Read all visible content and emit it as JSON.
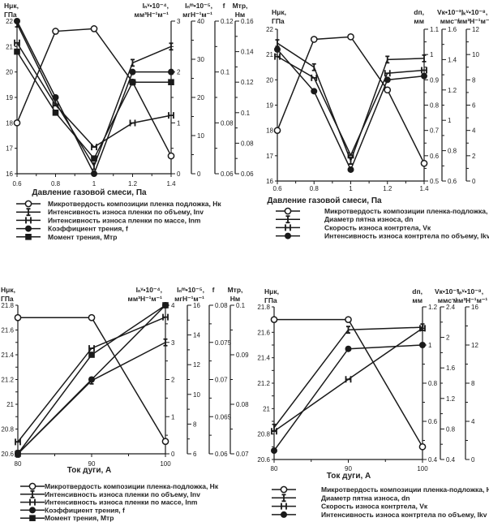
{
  "colors": {
    "line": "#1a1a1a",
    "axis": "#222222",
    "background": "#ffffff"
  },
  "chart_data": [
    {
      "type": "line",
      "xlabel": "Давление газовой смеси, Па",
      "x": [
        0.6,
        0.8,
        1,
        1.2,
        1.4
      ],
      "x_ticks": [
        "0.6",
        "0.8",
        "1",
        "1.2",
        "1.4"
      ],
      "axes": [
        {
          "id": "Hk",
          "side": "left",
          "title": [
            "Hμк,",
            "ГПа"
          ],
          "range": [
            16,
            22
          ],
          "ticks": [
            16,
            17,
            18,
            19,
            20,
            21,
            22
          ],
          "minor": 0
        },
        {
          "id": "Inv",
          "side": "right",
          "title": [
            "Iₙᵛ•10⁻⁴,",
            "мм³Н⁻¹м⁻¹"
          ],
          "range": [
            0,
            3
          ],
          "ticks": [
            0,
            1,
            2,
            3
          ],
          "minor": 1
        },
        {
          "id": "Inm",
          "side": "right",
          "title": [
            "Iₙᵐ•10⁻⁵,",
            "мгН⁻¹м⁻¹"
          ],
          "range": [
            0,
            40
          ],
          "ticks": [
            0,
            10,
            20,
            30,
            40
          ],
          "minor": 1
        },
        {
          "id": "f",
          "side": "right",
          "title": [
            "f",
            ""
          ],
          "range": [
            0.06,
            0.12
          ],
          "ticks": [
            0.06,
            0.08,
            0.1,
            0.12
          ],
          "minor": 1
        },
        {
          "id": "Mtr",
          "side": "right",
          "title": [
            "Mтр,",
            "Нм"
          ],
          "range": [
            0.06,
            0.16
          ],
          "ticks": [
            0.06,
            0.08,
            0.1,
            0.12,
            0.14,
            0.16
          ],
          "minor": 1
        }
      ],
      "series": [
        {
          "name": "Микротвердость композиции пленка подложка, Hк",
          "axis": "Hk",
          "marker": "open-circle",
          "values": [
            18,
            21.6,
            21.7,
            19.6,
            16.7
          ]
        },
        {
          "name": "Интенсивность износа пленки по объему, Inv",
          "axis": "Inv",
          "marker": "bar-i",
          "values": [
            2.95,
            1.4,
            0.15,
            2.18,
            2.5
          ]
        },
        {
          "name": "Интенсивность износа пленки по массе, Inm",
          "axis": "Inm",
          "marker": "bar-h",
          "values": [
            34.3,
            18,
            7,
            13.3,
            15.3
          ]
        },
        {
          "name": "Коэффициент трения, f",
          "axis": "f",
          "marker": "filled-circle",
          "values": [
            0.12,
            0.09,
            0.06,
            0.1,
            0.1
          ]
        },
        {
          "name": "Момент трения, Mтр",
          "axis": "Mtr",
          "marker": "filled-square",
          "values": [
            0.14,
            0.1,
            0.07,
            0.12,
            0.12
          ]
        }
      ]
    },
    {
      "type": "line",
      "xlabel": "Давление газовой смеси, Па",
      "x": [
        0.6,
        0.8,
        1,
        1.2,
        1.4
      ],
      "x_ticks": [
        "0.6",
        "0.8",
        "1",
        "1.2",
        "1.4"
      ],
      "axes": [
        {
          "id": "Hk",
          "side": "left",
          "title": [
            "Hμк,",
            "ГПа"
          ],
          "range": [
            16,
            22
          ],
          "ticks": [
            16,
            17,
            18,
            19,
            20,
            21,
            22
          ],
          "minor": 0
        },
        {
          "id": "dn",
          "side": "right",
          "title": [
            "dп,",
            "мм"
          ],
          "range": [
            0.5,
            1.1
          ],
          "ticks": [
            0.5,
            0.6,
            0.7,
            0.8,
            0.9,
            1,
            1.1
          ],
          "minor": 1
        },
        {
          "id": "Vk",
          "side": "right",
          "title": [
            "Vк•10⁻³,",
            "ммс⁻¹"
          ],
          "range": [
            0.6,
            1.6
          ],
          "ticks": [
            0.6,
            0.8,
            1,
            1.2,
            1.4,
            1.6
          ],
          "minor": 1
        },
        {
          "id": "Ikv",
          "side": "right",
          "title": [
            "Iₖᵛ•10⁻⁸,",
            "мм³Н⁻¹м⁻¹"
          ],
          "range": [
            0,
            12
          ],
          "ticks": [
            0,
            2,
            4,
            6,
            8,
            10,
            12
          ],
          "minor": 1
        }
      ],
      "series": [
        {
          "name": "Микротвердость композиции пленка-подложка, Hк",
          "axis": "Hk",
          "marker": "open-circle",
          "values": [
            18,
            21.6,
            21.7,
            19.6,
            16.7
          ]
        },
        {
          "name": "Диаметр пятна износа, dn",
          "axis": "dn",
          "marker": "bar-i",
          "values": [
            1.045,
            0.95,
            0.58,
            0.98,
            0.985
          ]
        },
        {
          "name": "Скорость износа контртела, Vк",
          "axis": "Vk",
          "marker": "bar-h",
          "values": [
            1.42,
            1.28,
            0.77,
            1.31,
            1.33
          ]
        },
        {
          "name": "Интенсивность износа контртела по объему, Ikv",
          "axis": "Ikv",
          "marker": "filled-circle",
          "values": [
            10.4,
            7.1,
            0.9,
            8,
            8.3
          ]
        }
      ]
    },
    {
      "type": "line",
      "xlabel": "Ток дуги, А",
      "x": [
        80,
        90,
        100
      ],
      "x_ticks": [
        "80",
        "90",
        "100"
      ],
      "axes": [
        {
          "id": "Hk",
          "side": "left",
          "title": [
            "Hμк,",
            "ГПа"
          ],
          "range": [
            20.6,
            21.8
          ],
          "ticks": [
            20.6,
            20.8,
            21,
            21.2,
            21.4,
            21.6,
            21.8
          ],
          "minor": 1
        },
        {
          "id": "Inv",
          "side": "right",
          "title": [
            "Iₙᵛ•10⁻⁴,",
            "мм³Н⁻¹м⁻¹"
          ],
          "range": [
            0,
            4
          ],
          "ticks": [
            0,
            1,
            2,
            3,
            4
          ],
          "minor": 1
        },
        {
          "id": "Inm",
          "side": "right",
          "title": [
            "Iₙᵐ•10⁻⁵,",
            "мгН⁻¹м⁻¹"
          ],
          "range": [
            6,
            16
          ],
          "ticks": [
            6,
            8,
            10,
            12,
            14,
            16
          ],
          "minor": 1
        },
        {
          "id": "f",
          "side": "right",
          "title": [
            "f",
            ""
          ],
          "range": [
            0.06,
            0.08
          ],
          "ticks": [
            0.06,
            0.065,
            0.07,
            0.075,
            0.08
          ],
          "minor": 1
        },
        {
          "id": "Mtr",
          "side": "right",
          "title": [
            "Mтр,",
            "Нм"
          ],
          "range": [
            0.07,
            0.1
          ],
          "ticks": [
            0.07,
            0.08,
            0.09,
            0.1
          ],
          "minor": 1
        }
      ],
      "series": [
        {
          "name": "Микротвердость композиции пленка-подложка, Hк",
          "axis": "Hk",
          "marker": "open-circle",
          "values": [
            21.7,
            21.7,
            20.7
          ]
        },
        {
          "name": "Интенсивность износа пленки по объему, Inv",
          "axis": "Inv",
          "marker": "bar-i",
          "values": [
            0,
            1.97,
            3.0
          ]
        },
        {
          "name": "Интенсивность износа пленки по массе, Inm",
          "axis": "Inm",
          "marker": "bar-h",
          "values": [
            6.8,
            13.1,
            15.2
          ]
        },
        {
          "name": "Коэффициент трения, f",
          "axis": "f",
          "marker": "filled-circle",
          "values": [
            0.06,
            0.07,
            0.08
          ]
        },
        {
          "name": "Момент трения, Mтр",
          "axis": "Mtr",
          "marker": "filled-square",
          "values": [
            0.07,
            0.09,
            0.1
          ]
        }
      ]
    },
    {
      "type": "line",
      "xlabel": "Ток дуги, А",
      "x": [
        80,
        90,
        100
      ],
      "x_ticks": [
        "80",
        "90",
        "100"
      ],
      "axes": [
        {
          "id": "Hk",
          "side": "left",
          "title": [
            "Hμк,",
            "ГПа"
          ],
          "range": [
            20.6,
            21.8
          ],
          "ticks": [
            20.6,
            20.8,
            21,
            21.2,
            21.4,
            21.6,
            21.8
          ],
          "minor": 1
        },
        {
          "id": "dn",
          "side": "right",
          "title": [
            "dп,",
            "мм"
          ],
          "range": [
            0.4,
            1.2
          ],
          "ticks": [
            0.4,
            0.6,
            0.8,
            1,
            1.2
          ],
          "minor": 1
        },
        {
          "id": "Vk",
          "side": "right",
          "title": [
            "Vк•10⁻³,",
            "ммс⁻¹"
          ],
          "range": [
            0.4,
            2.4
          ],
          "ticks": [
            0.4,
            0.8,
            1.2,
            1.6,
            2,
            2.4
          ],
          "minor": 1
        },
        {
          "id": "Ikv",
          "side": "right",
          "title": [
            "Iₙᵛ•10⁻⁸,",
            "мм³Н⁻¹м⁻¹"
          ],
          "range": [
            0,
            16
          ],
          "ticks": [
            0,
            4,
            8,
            12,
            16
          ],
          "minor": 1
        }
      ],
      "series": [
        {
          "name": "Микротвердость композиции пленка-подложка, Hк",
          "axis": "Hk",
          "marker": "open-circle",
          "values": [
            21.7,
            21.7,
            20.7
          ]
        },
        {
          "name": "Диаметр пятна износа, dn",
          "axis": "dn",
          "marker": "bar-i",
          "values": [
            0.567,
            1.08,
            1.093
          ]
        },
        {
          "name": "Скорость износа контртела, Vк",
          "axis": "Vk",
          "marker": "bar-h",
          "values": [
            0.77,
            1.45,
            2.12
          ]
        },
        {
          "name": "Интенсивность износа контртела по объему, Ikv",
          "axis": "Ikv",
          "marker": "filled-circle",
          "values": [
            0.93,
            11.6,
            12
          ]
        }
      ]
    }
  ]
}
